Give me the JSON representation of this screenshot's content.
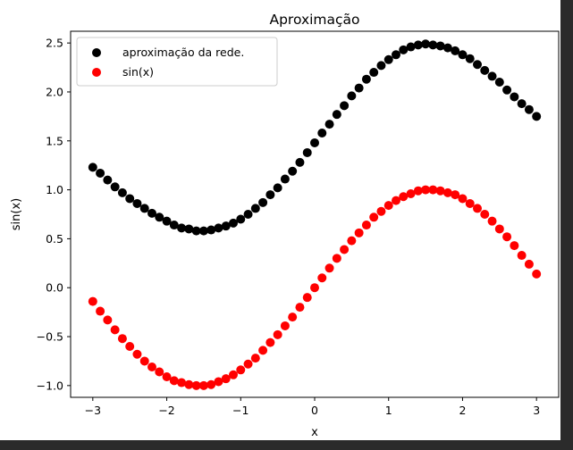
{
  "chart_data": {
    "type": "scatter",
    "title": "Aproximação",
    "xlabel": "x",
    "ylabel": "sin(x)",
    "xlim": [
      -3.3,
      3.3
    ],
    "ylim": [
      -1.12,
      2.62
    ],
    "x_ticks": [
      -3,
      -2,
      -1,
      0,
      1,
      2,
      3
    ],
    "x_tick_labels": [
      "−3",
      "−2",
      "−1",
      "0",
      "1",
      "2",
      "3"
    ],
    "y_ticks": [
      -1.0,
      -0.5,
      0.0,
      0.5,
      1.0,
      1.5,
      2.0,
      2.5
    ],
    "y_tick_labels": [
      "−1.0",
      "−0.5",
      "0.0",
      "0.5",
      "1.0",
      "1.5",
      "2.0",
      "2.5"
    ],
    "grid": false,
    "legend_position": "upper-left",
    "series": [
      {
        "name": "aproximação da rede.",
        "color": "#000000",
        "x": [
          -3.0,
          -2.9,
          -2.8,
          -2.7,
          -2.6,
          -2.5,
          -2.4,
          -2.3,
          -2.2,
          -2.1,
          -2.0,
          -1.9,
          -1.8,
          -1.7,
          -1.6,
          -1.5,
          -1.4,
          -1.3,
          -1.2,
          -1.1,
          -1.0,
          -0.9,
          -0.8,
          -0.7,
          -0.6,
          -0.5,
          -0.4,
          -0.3,
          -0.2,
          -0.1,
          0.0,
          0.1,
          0.2,
          0.3,
          0.4,
          0.5,
          0.6,
          0.7,
          0.8,
          0.9,
          1.0,
          1.1,
          1.2,
          1.3,
          1.4,
          1.5,
          1.6,
          1.7,
          1.8,
          1.9,
          2.0,
          2.1,
          2.2,
          2.3,
          2.4,
          2.5,
          2.6,
          2.7,
          2.8,
          2.9,
          3.0
        ],
        "y": [
          1.23,
          1.17,
          1.1,
          1.03,
          0.97,
          0.91,
          0.86,
          0.81,
          0.76,
          0.72,
          0.68,
          0.64,
          0.61,
          0.6,
          0.58,
          0.58,
          0.59,
          0.61,
          0.63,
          0.66,
          0.7,
          0.75,
          0.81,
          0.87,
          0.95,
          1.02,
          1.11,
          1.19,
          1.28,
          1.38,
          1.48,
          1.58,
          1.67,
          1.77,
          1.86,
          1.96,
          2.04,
          2.13,
          2.2,
          2.27,
          2.33,
          2.38,
          2.43,
          2.46,
          2.48,
          2.49,
          2.48,
          2.47,
          2.45,
          2.42,
          2.38,
          2.34,
          2.28,
          2.22,
          2.16,
          2.1,
          2.02,
          1.95,
          1.88,
          1.82,
          1.75
        ]
      },
      {
        "name": "sin(x)",
        "color": "#ff0000",
        "x": [
          -3.0,
          -2.9,
          -2.8,
          -2.7,
          -2.6,
          -2.5,
          -2.4,
          -2.3,
          -2.2,
          -2.1,
          -2.0,
          -1.9,
          -1.8,
          -1.7,
          -1.6,
          -1.5,
          -1.4,
          -1.3,
          -1.2,
          -1.1,
          -1.0,
          -0.9,
          -0.8,
          -0.7,
          -0.6,
          -0.5,
          -0.4,
          -0.3,
          -0.2,
          -0.1,
          0.0,
          0.1,
          0.2,
          0.3,
          0.4,
          0.5,
          0.6,
          0.7,
          0.8,
          0.9,
          1.0,
          1.1,
          1.2,
          1.3,
          1.4,
          1.5,
          1.6,
          1.7,
          1.8,
          1.9,
          2.0,
          2.1,
          2.2,
          2.3,
          2.4,
          2.5,
          2.6,
          2.7,
          2.8,
          2.9,
          3.0
        ],
        "y": [
          -0.14,
          -0.24,
          -0.33,
          -0.43,
          -0.52,
          -0.6,
          -0.68,
          -0.75,
          -0.81,
          -0.86,
          -0.91,
          -0.95,
          -0.97,
          -0.99,
          -1.0,
          -1.0,
          -0.99,
          -0.96,
          -0.93,
          -0.89,
          -0.84,
          -0.78,
          -0.72,
          -0.64,
          -0.56,
          -0.48,
          -0.39,
          -0.3,
          -0.2,
          -0.1,
          0.0,
          0.1,
          0.2,
          0.3,
          0.39,
          0.48,
          0.56,
          0.64,
          0.72,
          0.78,
          0.84,
          0.89,
          0.93,
          0.96,
          0.99,
          1.0,
          1.0,
          0.99,
          0.97,
          0.95,
          0.91,
          0.86,
          0.81,
          0.75,
          0.68,
          0.6,
          0.52,
          0.43,
          0.33,
          0.24,
          0.14
        ]
      }
    ]
  }
}
